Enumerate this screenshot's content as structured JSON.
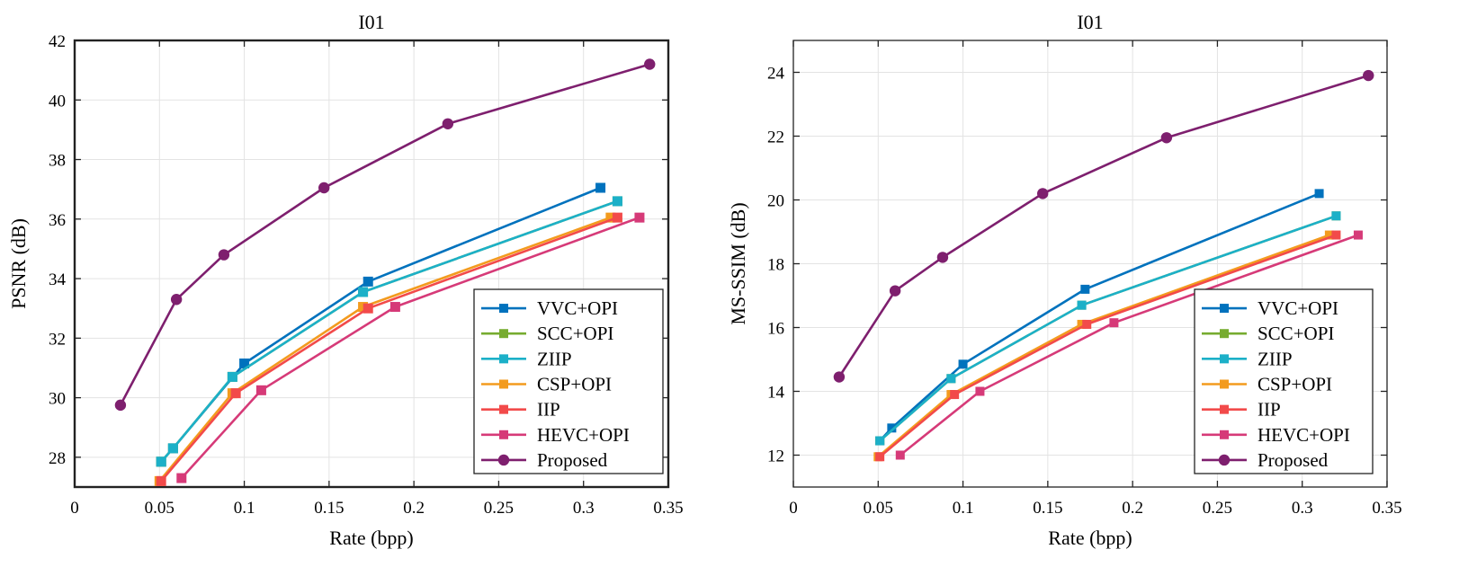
{
  "chart_data": [
    {
      "type": "line",
      "title": "I01",
      "xlabel": "Rate (bpp)",
      "ylabel": "PSNR (dB)",
      "xlim": [
        0,
        0.35
      ],
      "ylim": [
        27,
        42
      ],
      "xticks": [
        0,
        0.05,
        0.1,
        0.15,
        0.2,
        0.25,
        0.3,
        0.35
      ],
      "xtick_labels": [
        "0",
        "0.05",
        "0.1",
        "0.15",
        "0.2",
        "0.25",
        "0.3",
        "0.35"
      ],
      "yticks": [
        28,
        30,
        32,
        34,
        36,
        38,
        40,
        42
      ],
      "ytick_labels": [
        "28",
        "30",
        "32",
        "34",
        "36",
        "38",
        "40",
        "42"
      ],
      "grid": true,
      "legend_position": "bottom-right",
      "series": [
        {
          "name": "VVC+OPI",
          "color": "#0072BD",
          "marker": "square",
          "x": [
            0.051,
            0.058,
            0.1,
            0.173,
            0.31
          ],
          "y": [
            27.85,
            28.3,
            31.15,
            33.9,
            37.05
          ]
        },
        {
          "name": "SCC+OPI",
          "color": "#77AC30",
          "marker": "square",
          "x": [
            0.051,
            0.058,
            0.093,
            0.17,
            0.32
          ],
          "y": [
            27.85,
            28.3,
            30.7,
            33.55,
            36.6
          ]
        },
        {
          "name": "ZIIP",
          "color": "#1CB0C8",
          "marker": "square",
          "x": [
            0.051,
            0.058,
            0.093,
            0.17,
            0.32
          ],
          "y": [
            27.85,
            28.3,
            30.7,
            33.55,
            36.6
          ]
        },
        {
          "name": "CSP+OPI",
          "color": "#F39B1E",
          "marker": "square",
          "x": [
            0.05,
            0.093,
            0.17,
            0.316
          ],
          "y": [
            27.2,
            30.15,
            33.05,
            36.05
          ]
        },
        {
          "name": "IIP",
          "color": "#F24A4A",
          "marker": "square",
          "x": [
            0.051,
            0.095,
            0.173,
            0.32
          ],
          "y": [
            27.2,
            30.15,
            33.0,
            36.05
          ]
        },
        {
          "name": "HEVC+OPI",
          "color": "#D63A78",
          "marker": "square",
          "x": [
            0.063,
            0.11,
            0.189,
            0.333
          ],
          "y": [
            27.3,
            30.25,
            33.05,
            36.05
          ]
        },
        {
          "name": "Proposed",
          "color": "#7E1F6E",
          "marker": "circle",
          "x": [
            0.027,
            0.06,
            0.088,
            0.147,
            0.22,
            0.339
          ],
          "y": [
            29.75,
            33.3,
            34.8,
            37.05,
            39.2,
            41.2
          ]
        }
      ]
    },
    {
      "type": "line",
      "title": "I01",
      "xlabel": "Rate (bpp)",
      "ylabel": "MS-SSIM (dB)",
      "xlim": [
        0,
        0.35
      ],
      "ylim": [
        11,
        25
      ],
      "xticks": [
        0,
        0.05,
        0.1,
        0.15,
        0.2,
        0.25,
        0.3,
        0.35
      ],
      "xtick_labels": [
        "0",
        "0.05",
        "0.1",
        "0.15",
        "0.2",
        "0.25",
        "0.3",
        "0.35"
      ],
      "yticks": [
        12,
        14,
        16,
        18,
        20,
        22,
        24
      ],
      "ytick_labels": [
        "12",
        "14",
        "16",
        "18",
        "20",
        "22",
        "24"
      ],
      "grid": true,
      "legend_position": "bottom-right",
      "series": [
        {
          "name": "VVC+OPI",
          "color": "#0072BD",
          "marker": "square",
          "x": [
            0.051,
            0.058,
            0.1,
            0.172,
            0.31
          ],
          "y": [
            12.45,
            12.85,
            14.85,
            17.2,
            20.2
          ]
        },
        {
          "name": "SCC+OPI",
          "color": "#77AC30",
          "marker": "square",
          "x": [
            0.051,
            0.093,
            0.17,
            0.32
          ],
          "y": [
            12.45,
            14.4,
            16.7,
            19.5
          ]
        },
        {
          "name": "ZIIP",
          "color": "#1CB0C8",
          "marker": "square",
          "x": [
            0.051,
            0.093,
            0.17,
            0.32
          ],
          "y": [
            12.45,
            14.4,
            16.7,
            19.5
          ]
        },
        {
          "name": "CSP+OPI",
          "color": "#F39B1E",
          "marker": "square",
          "x": [
            0.05,
            0.093,
            0.17,
            0.316
          ],
          "y": [
            11.95,
            13.9,
            16.1,
            18.9
          ]
        },
        {
          "name": "IIP",
          "color": "#F24A4A",
          "marker": "square",
          "x": [
            0.051,
            0.095,
            0.173,
            0.32
          ],
          "y": [
            11.95,
            13.9,
            16.1,
            18.9
          ]
        },
        {
          "name": "HEVC+OPI",
          "color": "#D63A78",
          "marker": "square",
          "x": [
            0.063,
            0.11,
            0.189,
            0.333
          ],
          "y": [
            12.0,
            14.0,
            16.15,
            18.9
          ]
        },
        {
          "name": "Proposed",
          "color": "#7E1F6E",
          "marker": "circle",
          "x": [
            0.027,
            0.06,
            0.088,
            0.147,
            0.22,
            0.339
          ],
          "y": [
            14.45,
            17.15,
            18.2,
            20.2,
            21.95,
            23.9
          ]
        }
      ]
    }
  ]
}
